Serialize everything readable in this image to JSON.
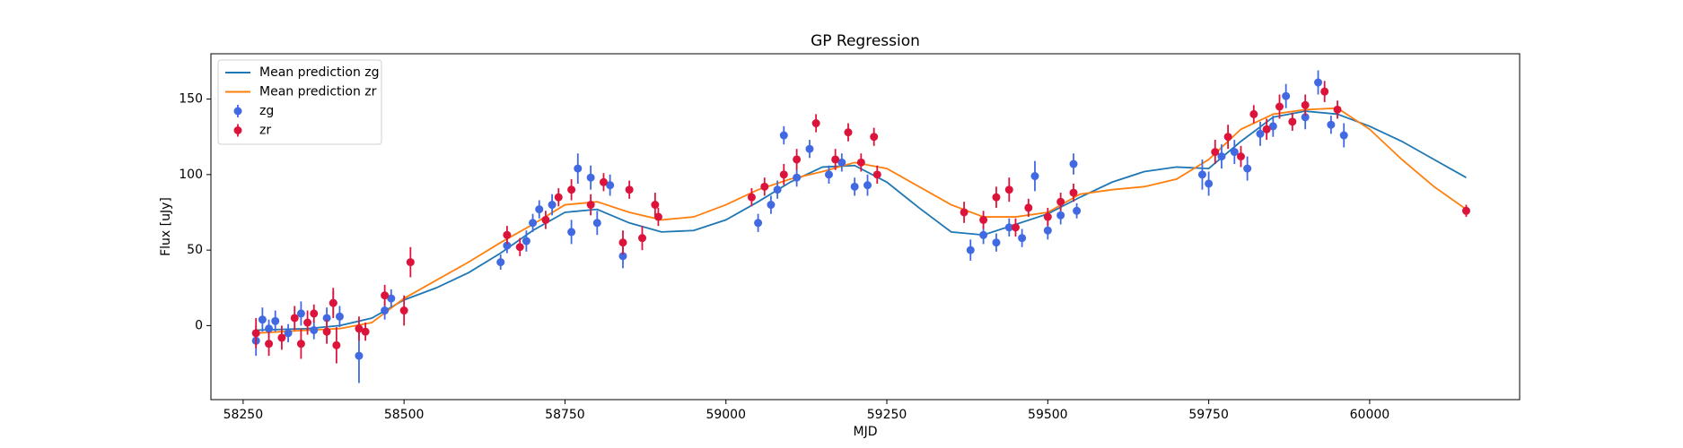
{
  "chart_data": {
    "type": "scatter",
    "title": "GP Regression",
    "x_label": "MJD",
    "y_label": "Flux [uJy]",
    "xlim": [
      58200,
      60233
    ],
    "ylim": [
      -49,
      180
    ],
    "xticks": [
      58250,
      58500,
      58750,
      59000,
      59250,
      59500,
      59750,
      60000
    ],
    "yticks": [
      0,
      50,
      100,
      150
    ],
    "legend": "upper left",
    "series": [
      {
        "name": "Mean prediction zg",
        "type": "line",
        "color": "#1f77b4",
        "x": [
          58270,
          58350,
          58400,
          58450,
          58500,
          58550,
          58600,
          58650,
          58700,
          58750,
          58800,
          58850,
          58900,
          58950,
          59000,
          59050,
          59100,
          59150,
          59200,
          59250,
          59300,
          59350,
          59400,
          59450,
          59500,
          59550,
          59600,
          59650,
          59700,
          59750,
          59800,
          59850,
          59900,
          59950,
          60000,
          60050,
          60100,
          60150
        ],
        "values": [
          -3,
          -2,
          0,
          5,
          17,
          25,
          35,
          48,
          63,
          75,
          77,
          68,
          62,
          63,
          70,
          82,
          95,
          105,
          106,
          95,
          78,
          62,
          60,
          67,
          74,
          85,
          95,
          102,
          105,
          104,
          122,
          138,
          142,
          140,
          132,
          122,
          110,
          98
        ]
      },
      {
        "name": "Mean prediction zr",
        "type": "line",
        "color": "#ff7f0e",
        "x": [
          58270,
          58350,
          58400,
          58450,
          58500,
          58550,
          58600,
          58650,
          58700,
          58750,
          58800,
          58850,
          58900,
          58950,
          59000,
          59050,
          59100,
          59150,
          59200,
          59250,
          59300,
          59350,
          59400,
          59450,
          59500,
          59550,
          59600,
          59650,
          59700,
          59750,
          59800,
          59850,
          59900,
          59950,
          60000,
          60050,
          60100,
          60150
        ],
        "values": [
          -5,
          -3,
          -2,
          2,
          18,
          30,
          42,
          55,
          67,
          80,
          82,
          75,
          70,
          72,
          80,
          90,
          97,
          102,
          108,
          104,
          92,
          80,
          72,
          72,
          75,
          87,
          90,
          92,
          97,
          110,
          130,
          140,
          143,
          144,
          130,
          110,
          92,
          77
        ]
      },
      {
        "name": "zg",
        "type": "scatter",
        "color": "#4169e1",
        "x": [
          58270,
          58280,
          58290,
          58300,
          58320,
          58340,
          58360,
          58380,
          58390,
          58400,
          58430,
          58470,
          58480,
          58650,
          58660,
          58690,
          58700,
          58710,
          58730,
          58760,
          58770,
          58790,
          58800,
          58820,
          58840,
          59050,
          59070,
          59080,
          59090,
          59110,
          59130,
          59160,
          59180,
          59200,
          59220,
          59380,
          59400,
          59420,
          59440,
          59460,
          59480,
          59500,
          59520,
          59540,
          59545,
          59740,
          59750,
          59770,
          59790,
          59810,
          59830,
          59850,
          59870,
          59900,
          59920,
          59940,
          59960
        ],
        "values": [
          -10,
          4,
          -2,
          3,
          -5,
          8,
          -3,
          5,
          15,
          6,
          -20,
          10,
          18,
          42,
          53,
          56,
          68,
          77,
          80,
          62,
          104,
          98,
          68,
          93,
          46,
          68,
          80,
          90,
          126,
          98,
          117,
          100,
          108,
          92,
          93,
          50,
          60,
          55,
          65,
          58,
          99,
          63,
          73,
          107,
          76,
          100,
          94,
          112,
          115,
          104,
          127,
          132,
          152,
          138,
          161,
          133,
          126
        ],
        "errors": [
          10,
          8,
          6,
          7,
          6,
          8,
          6,
          7,
          8,
          7,
          18,
          6,
          6,
          5,
          5,
          7,
          6,
          6,
          7,
          8,
          10,
          8,
          8,
          7,
          8,
          6,
          6,
          6,
          6,
          6,
          6,
          6,
          6,
          6,
          7,
          7,
          6,
          6,
          6,
          6,
          10,
          6,
          6,
          7,
          5,
          10,
          8,
          8,
          8,
          8,
          8,
          7,
          8,
          8,
          8,
          6,
          8
        ]
      },
      {
        "name": "zr",
        "type": "scatter",
        "color": "#dc143c",
        "x": [
          58270,
          58290,
          58310,
          58330,
          58340,
          58350,
          58360,
          58380,
          58390,
          58395,
          58430,
          58440,
          58470,
          58500,
          58510,
          58660,
          58680,
          58720,
          58740,
          58760,
          58790,
          58810,
          58840,
          58850,
          58870,
          58890,
          58895,
          59040,
          59060,
          59090,
          59110,
          59140,
          59170,
          59190,
          59210,
          59230,
          59235,
          59370,
          59400,
          59420,
          59440,
          59450,
          59470,
          59500,
          59520,
          59540,
          59760,
          59780,
          59800,
          59820,
          59840,
          59860,
          59880,
          59900,
          59930,
          59950,
          60150
        ],
        "values": [
          -5,
          -12,
          -8,
          5,
          -12,
          2,
          8,
          -4,
          15,
          -13,
          -2,
          -4,
          20,
          10,
          42,
          60,
          52,
          70,
          85,
          90,
          80,
          95,
          55,
          90,
          58,
          80,
          72,
          85,
          92,
          100,
          110,
          134,
          110,
          128,
          108,
          125,
          100,
          75,
          70,
          85,
          90,
          65,
          78,
          72,
          82,
          88,
          115,
          125,
          112,
          140,
          130,
          145,
          135,
          146,
          155,
          143,
          76
        ],
        "errors": [
          10,
          8,
          8,
          8,
          10,
          8,
          6,
          8,
          10,
          12,
          8,
          6,
          7,
          10,
          10,
          6,
          6,
          6,
          6,
          7,
          7,
          6,
          8,
          6,
          8,
          8,
          6,
          6,
          6,
          7,
          7,
          6,
          7,
          6,
          6,
          6,
          6,
          7,
          6,
          7,
          8,
          6,
          6,
          6,
          6,
          6,
          8,
          8,
          7,
          6,
          7,
          8,
          6,
          7,
          7,
          6,
          4
        ]
      }
    ]
  }
}
